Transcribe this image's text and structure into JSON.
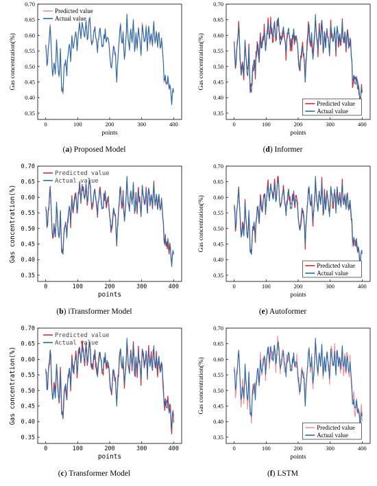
{
  "figure": {
    "panels": [
      {
        "letter": "a",
        "name": "Proposed Model",
        "legend_style": "serif"
      },
      {
        "letter": "d",
        "name": "Informer",
        "legend_style": "serif"
      },
      {
        "letter": "b",
        "name": "iTransformer Model",
        "legend_style": "mono"
      },
      {
        "letter": "e",
        "name": "Autoformer",
        "legend_style": "serif"
      },
      {
        "letter": "c",
        "name": "Transformer Model",
        "legend_style": "mono"
      },
      {
        "letter": "f",
        "name": "LSTM",
        "legend_style": "serif"
      }
    ]
  },
  "colors": {
    "predicted": "#e0272b",
    "predicted_light": "#f28f93",
    "actual": "#1f6db0"
  },
  "chart_data": [
    {
      "type": "line",
      "panel": "a",
      "title": "",
      "xlabel": "points",
      "ylabel": "Gas concentration(%)",
      "xlim": [
        -25,
        425
      ],
      "ylim": [
        0.33,
        0.7
      ],
      "xticks": [
        0,
        100,
        200,
        300,
        400
      ],
      "yticks": [
        0.35,
        0.4,
        0.45,
        0.5,
        0.55,
        0.6,
        0.65,
        0.7
      ],
      "legend": {
        "position": "top-left",
        "entries": [
          "Predicted value",
          "Actual value"
        ]
      },
      "series": [
        {
          "name": "Predicted value",
          "color": "#f28f93",
          "error_scale": 0.008
        },
        {
          "name": "Actual value",
          "color": "#1f6db0"
        }
      ],
      "series_note": "Predicted value nearly overlaps actual value"
    },
    {
      "type": "line",
      "panel": "d",
      "title": "",
      "xlabel": "points",
      "ylabel": "Gas concentration(%)",
      "xlim": [
        -25,
        425
      ],
      "ylim": [
        0.33,
        0.7
      ],
      "xticks": [
        0,
        100,
        200,
        300,
        400
      ],
      "yticks": [
        0.35,
        0.4,
        0.45,
        0.5,
        0.55,
        0.6,
        0.65,
        0.7
      ],
      "legend": {
        "position": "bottom-center",
        "entries": [
          "Predicted value",
          "Actual value"
        ]
      },
      "series": [
        {
          "name": "Predicted value",
          "color": "#e0272b",
          "error_scale": 0.025
        },
        {
          "name": "Actual value",
          "color": "#1f6db0"
        }
      ]
    },
    {
      "type": "line",
      "panel": "b",
      "title": "",
      "xlabel": "points",
      "ylabel": "Gas concentration(%)",
      "xlim": [
        -25,
        425
      ],
      "ylim": [
        0.33,
        0.7
      ],
      "xticks": [
        0,
        100,
        200,
        300,
        400
      ],
      "yticks": [
        0.35,
        0.4,
        0.45,
        0.5,
        0.55,
        0.6,
        0.65,
        0.7
      ],
      "legend": {
        "position": "top-left",
        "entries": [
          "Predicted value",
          "Actual value"
        ]
      },
      "series": [
        {
          "name": "Predicted value",
          "color": "#e0272b",
          "error_scale": 0.014
        },
        {
          "name": "Actual value",
          "color": "#1f6db0"
        }
      ]
    },
    {
      "type": "line",
      "panel": "e",
      "title": "",
      "xlabel": "points",
      "ylabel": "Gas concentration(%)",
      "xlim": [
        -25,
        425
      ],
      "ylim": [
        0.33,
        0.7
      ],
      "xticks": [
        0,
        100,
        200,
        300,
        400
      ],
      "yticks": [
        0.35,
        0.4,
        0.45,
        0.5,
        0.55,
        0.6,
        0.65,
        0.7
      ],
      "legend": {
        "position": "bottom-center",
        "entries": [
          "Predicted value",
          "Actual value"
        ]
      },
      "series": [
        {
          "name": "Predicted value",
          "color": "#e0272b",
          "error_scale": 0.018
        },
        {
          "name": "Actual value",
          "color": "#1f6db0"
        }
      ]
    },
    {
      "type": "line",
      "panel": "c",
      "title": "",
      "xlabel": "points",
      "ylabel": "Gas concentration(%)",
      "xlim": [
        -25,
        425
      ],
      "ylim": [
        0.33,
        0.7
      ],
      "xticks": [
        0,
        100,
        200,
        300,
        400
      ],
      "yticks": [
        0.35,
        0.4,
        0.45,
        0.5,
        0.55,
        0.6,
        0.65,
        0.7
      ],
      "legend": {
        "position": "top-left",
        "entries": [
          "Predicted value",
          "Actual value"
        ]
      },
      "series": [
        {
          "name": "Predicted value",
          "color": "#e0272b",
          "error_scale": 0.022
        },
        {
          "name": "Actual value",
          "color": "#1f6db0"
        }
      ]
    },
    {
      "type": "line",
      "panel": "f",
      "title": "",
      "xlabel": "points",
      "ylabel": "Gas concentration(%)",
      "xlim": [
        -25,
        425
      ],
      "ylim": [
        0.33,
        0.7
      ],
      "xticks": [
        0,
        100,
        200,
        300,
        400
      ],
      "yticks": [
        0.35,
        0.4,
        0.45,
        0.5,
        0.55,
        0.6,
        0.65,
        0.7
      ],
      "legend": {
        "position": "bottom-center",
        "entries": [
          "Predicted value",
          "Actual value"
        ]
      },
      "series": [
        {
          "name": "Predicted value",
          "color": "#f28f93",
          "error_scale": 0.03
        },
        {
          "name": "Actual value",
          "color": "#1f6db0"
        }
      ]
    }
  ],
  "actual_series_keypoints": {
    "x": [
      0,
      5,
      10,
      14,
      18,
      22,
      26,
      30,
      34,
      38,
      42,
      46,
      50,
      54,
      58,
      62,
      66,
      70,
      74,
      78,
      82,
      86,
      90,
      94,
      98,
      102,
      106,
      110,
      114,
      118,
      122,
      126,
      130,
      134,
      138,
      142,
      146,
      150,
      154,
      158,
      162,
      166,
      170,
      174,
      178,
      182,
      186,
      190,
      194,
      198,
      202,
      206,
      210,
      214,
      218,
      222,
      226,
      230,
      234,
      238,
      242,
      246,
      250,
      254,
      258,
      262,
      266,
      270,
      274,
      278,
      282,
      286,
      290,
      294,
      298,
      302,
      306,
      310,
      314,
      318,
      322,
      326,
      330,
      334,
      338,
      342,
      346,
      350,
      354,
      358,
      362,
      366,
      370,
      374,
      378,
      382,
      386,
      390,
      394,
      398
    ],
    "y": [
      0.56,
      0.5,
      0.58,
      0.63,
      0.55,
      0.46,
      0.52,
      0.48,
      0.58,
      0.52,
      0.46,
      0.55,
      0.43,
      0.42,
      0.5,
      0.53,
      0.48,
      0.54,
      0.57,
      0.52,
      0.6,
      0.55,
      0.59,
      0.62,
      0.56,
      0.6,
      0.63,
      0.58,
      0.64,
      0.61,
      0.6,
      0.65,
      0.58,
      0.62,
      0.66,
      0.59,
      0.57,
      0.6,
      0.63,
      0.58,
      0.55,
      0.6,
      0.62,
      0.58,
      0.56,
      0.59,
      0.61,
      0.57,
      0.6,
      0.58,
      0.52,
      0.5,
      0.55,
      0.57,
      0.53,
      0.46,
      0.54,
      0.59,
      0.63,
      0.57,
      0.6,
      0.52,
      0.58,
      0.66,
      0.6,
      0.56,
      0.62,
      0.58,
      0.64,
      0.55,
      0.6,
      0.56,
      0.62,
      0.58,
      0.54,
      0.63,
      0.59,
      0.57,
      0.62,
      0.56,
      0.63,
      0.58,
      0.6,
      0.57,
      0.64,
      0.58,
      0.6,
      0.57,
      0.62,
      0.56,
      0.58,
      0.54,
      0.46,
      0.47,
      0.44,
      0.46,
      0.43,
      0.44,
      0.38,
      0.43
    ]
  }
}
